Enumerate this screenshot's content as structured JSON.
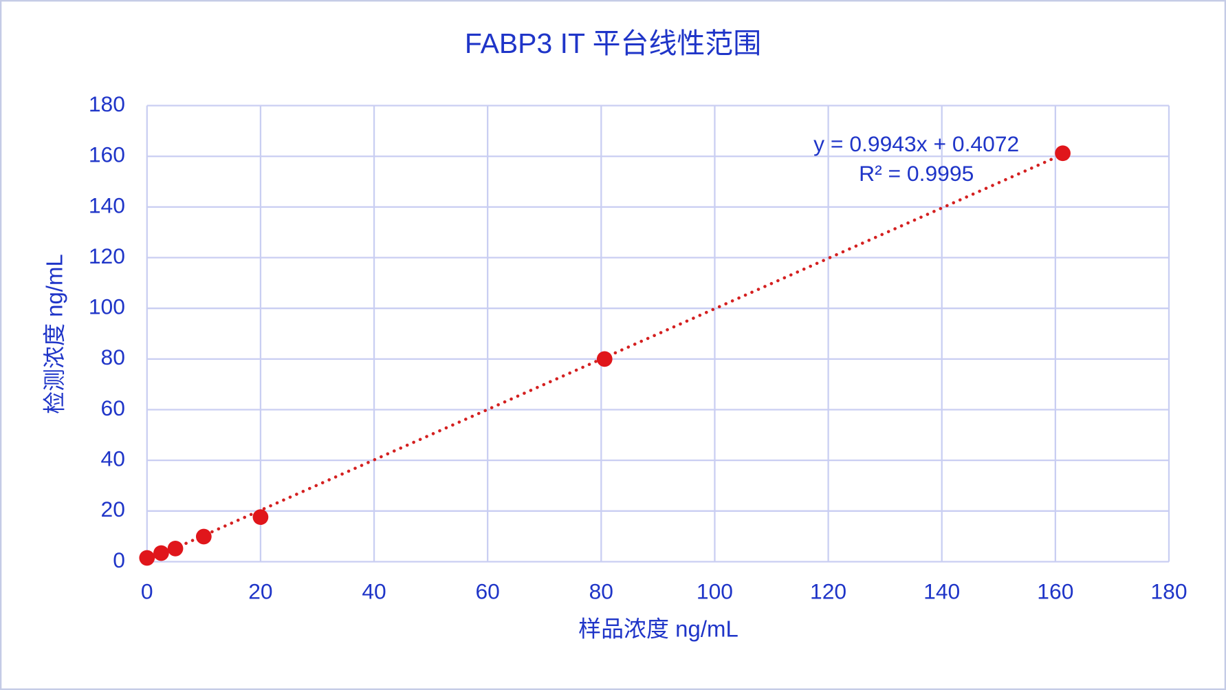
{
  "chart_data": {
    "type": "scatter",
    "title": "FABP3 IT 平台线性范围",
    "x_label": "样品浓度 ng/mL",
    "y_label": "检测浓度 ng/mL",
    "series": [
      {
        "name": "检测浓度",
        "color": "#e0161b",
        "x": [
          0,
          2.5,
          5,
          10,
          20,
          80.6,
          161.3
        ],
        "values": [
          1.5,
          3.4,
          5.2,
          9.9,
          17.6,
          80,
          161.2
        ]
      }
    ],
    "trendline": {
      "slope": 0.9943,
      "intercept": 0.4072,
      "equation": "y = 0.9943x + 0.4072",
      "r2": "R² = 0.9995",
      "color": "#d42020"
    },
    "xlim": [
      0,
      180
    ],
    "xticks": [
      0,
      20,
      40,
      60,
      80,
      100,
      120,
      140,
      160,
      180
    ],
    "ylim": [
      0,
      180
    ],
    "yticks": [
      0,
      20,
      40,
      60,
      80,
      100,
      120,
      140,
      160,
      180
    ],
    "grid": true
  }
}
